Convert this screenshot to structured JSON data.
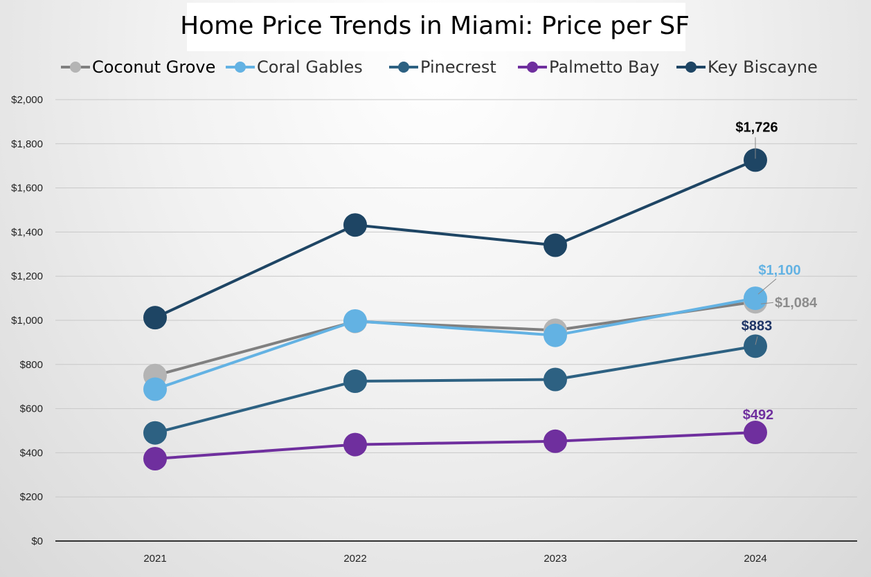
{
  "chart_data": {
    "type": "line",
    "title": "Home Price Trends in Miami: Price per SF",
    "categories": [
      "2021",
      "2022",
      "2023",
      "2024"
    ],
    "ylim": [
      0,
      2000
    ],
    "yticks": [
      0,
      200,
      400,
      600,
      800,
      1000,
      1200,
      1400,
      1600,
      1800,
      2000
    ],
    "ytick_labels": [
      "$0",
      "$200",
      "$400",
      "$600",
      "$800",
      "$1,000",
      "$1,200",
      "$1,400",
      "$1,600",
      "$1,800",
      "$2,000"
    ],
    "grid": true,
    "legend_position": "top",
    "series": [
      {
        "name": "Coconut Grove",
        "values": [
          750,
          995,
          955,
          1084
        ],
        "color": "#808080",
        "marker_color": "#b4b4b4",
        "label_text": "$1,084",
        "label_color": "#8c8c8c"
      },
      {
        "name": "Coral Gables",
        "values": [
          688,
          997,
          932,
          1100
        ],
        "color": "#63b2e3",
        "marker_color": "#63b2e3",
        "label_text": "$1,100",
        "label_color": "#63b2e3"
      },
      {
        "name": "Pinecrest",
        "values": [
          490,
          724,
          732,
          883
        ],
        "color": "#2d6182",
        "marker_color": "#2d6182",
        "label_text": "$883",
        "label_color": "#1f3566"
      },
      {
        "name": "Palmetto Bay",
        "values": [
          373,
          437,
          452,
          492
        ],
        "color": "#6f2f9e",
        "marker_color": "#6f2f9e",
        "label_text": "$492",
        "label_color": "#6f2f9e"
      },
      {
        "name": "Key Biscayne",
        "values": [
          1012,
          1432,
          1340,
          1726
        ],
        "color": "#1e4564",
        "marker_color": "#1e4564",
        "label_text": "$1,726",
        "label_color": "#000000"
      }
    ]
  }
}
